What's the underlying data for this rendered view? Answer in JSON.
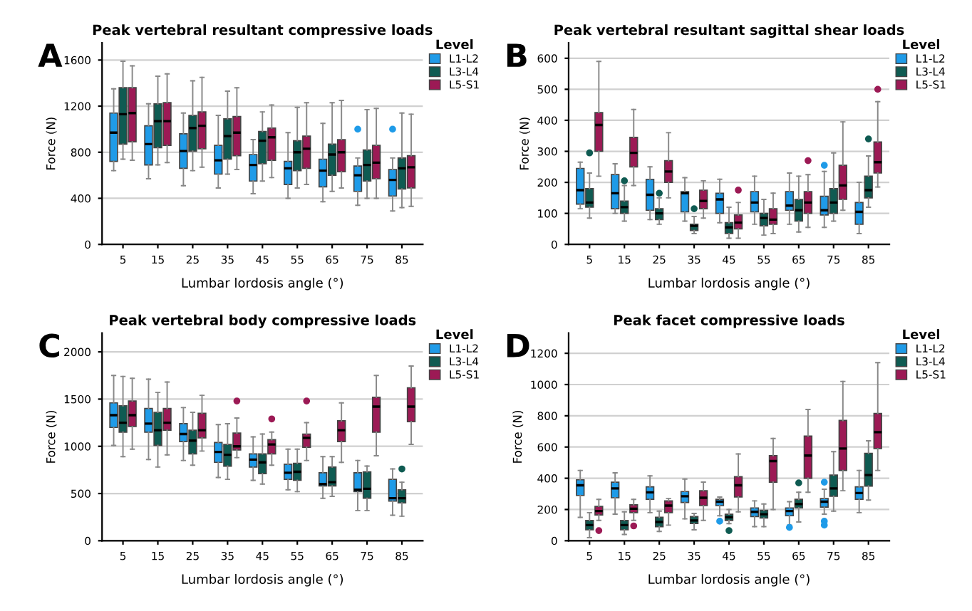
{
  "chart_data": [
    {
      "type": "box",
      "title": "Peak vertebral resultant compressive loads",
      "xlabel": "Lumbar lordosis angle (°)",
      "ylabel": "Force (N)",
      "annotations": [
        "A"
      ],
      "legend_title": "Level",
      "legend": "top right",
      "grid": "y",
      "ylim": [
        0,
        1750
      ],
      "yticks": [
        0,
        400,
        800,
        1200,
        1600
      ],
      "categories": [
        "5",
        "15",
        "25",
        "35",
        "45",
        "55",
        "65",
        "75",
        "85"
      ],
      "series": [
        {
          "name": "L1-L2",
          "color": "#1f9be8",
          "boxes": [
            {
              "low": 640,
              "q1": 720,
              "median": 970,
              "q3": 1140,
              "high": 1350
            },
            {
              "low": 570,
              "q1": 690,
              "median": 870,
              "q3": 1030,
              "high": 1220
            },
            {
              "low": 510,
              "q1": 660,
              "median": 810,
              "q3": 960,
              "high": 1140
            },
            {
              "low": 490,
              "q1": 610,
              "median": 730,
              "q3": 860,
              "high": 1120
            },
            {
              "low": 440,
              "q1": 550,
              "median": 690,
              "q3": 780,
              "high": 910
            },
            {
              "low": 400,
              "q1": 520,
              "median": 660,
              "q3": 720,
              "high": 970
            },
            {
              "low": 370,
              "q1": 500,
              "median": 640,
              "q3": 740,
              "high": 1050
            },
            {
              "low": 340,
              "q1": 460,
              "median": 600,
              "q3": 680,
              "high": 750,
              "outliers": [
                1000
              ]
            },
            {
              "low": 290,
              "q1": 420,
              "median": 560,
              "q3": 650,
              "high": 750,
              "outliers": [
                1000
              ]
            }
          ]
        },
        {
          "name": "L3-L4",
          "color": "#0f5b52",
          "boxes": [
            {
              "low": 740,
              "q1": 870,
              "median": 1130,
              "q3": 1360,
              "high": 1590
            },
            {
              "low": 690,
              "q1": 840,
              "median": 1070,
              "q3": 1220,
              "high": 1460
            },
            {
              "low": 640,
              "q1": 810,
              "median": 1010,
              "q3": 1120,
              "high": 1420
            },
            {
              "low": 610,
              "q1": 740,
              "median": 940,
              "q3": 1090,
              "high": 1330
            },
            {
              "low": 550,
              "q1": 700,
              "median": 900,
              "q3": 980,
              "high": 1150
            },
            {
              "low": 490,
              "q1": 640,
              "median": 800,
              "q3": 900,
              "high": 1190
            },
            {
              "low": 460,
              "q1": 600,
              "median": 780,
              "q3": 870,
              "high": 1230
            },
            {
              "low": 400,
              "q1": 550,
              "median": 690,
              "q3": 820,
              "high": 1170
            },
            {
              "low": 320,
              "q1": 480,
              "median": 660,
              "q3": 750,
              "high": 1140
            }
          ]
        },
        {
          "name": "L5-S1",
          "color": "#9c1a55",
          "boxes": [
            {
              "low": 730,
              "q1": 890,
              "median": 1140,
              "q3": 1360,
              "high": 1550
            },
            {
              "low": 710,
              "q1": 860,
              "median": 1070,
              "q3": 1230,
              "high": 1480
            },
            {
              "low": 670,
              "q1": 830,
              "median": 1030,
              "q3": 1150,
              "high": 1450
            },
            {
              "low": 650,
              "q1": 770,
              "median": 970,
              "q3": 1110,
              "high": 1360
            },
            {
              "low": 580,
              "q1": 730,
              "median": 930,
              "q3": 1010,
              "high": 1210
            },
            {
              "low": 520,
              "q1": 660,
              "median": 830,
              "q3": 940,
              "high": 1230
            },
            {
              "low": 490,
              "q1": 630,
              "median": 800,
              "q3": 910,
              "high": 1250
            },
            {
              "low": 400,
              "q1": 570,
              "median": 710,
              "q3": 860,
              "high": 1180
            },
            {
              "low": 330,
              "q1": 490,
              "median": 670,
              "q3": 770,
              "high": 1130
            }
          ]
        }
      ]
    },
    {
      "type": "box",
      "title": "Peak vertebral resultant sagittal shear loads",
      "xlabel": "Lumbar lordosis angle (°)",
      "ylabel": "Force (N)",
      "annotations": [
        "B"
      ],
      "legend_title": "Level",
      "legend": "top right",
      "grid": "y",
      "ylim": [
        0,
        650
      ],
      "yticks": [
        0,
        100,
        200,
        300,
        400,
        500,
        600
      ],
      "categories": [
        "5",
        "15",
        "25",
        "35",
        "45",
        "55",
        "65",
        "75",
        "85"
      ],
      "series": [
        {
          "name": "L1-L2",
          "color": "#1f9be8",
          "boxes": [
            {
              "low": 115,
              "q1": 130,
              "median": 175,
              "q3": 245,
              "high": 265
            },
            {
              "low": 100,
              "q1": 115,
              "median": 165,
              "q3": 225,
              "high": 260
            },
            {
              "low": 80,
              "q1": 110,
              "median": 160,
              "q3": 210,
              "high": 250
            },
            {
              "low": 75,
              "q1": 105,
              "median": 165,
              "q3": 170,
              "high": 215
            },
            {
              "low": 70,
              "q1": 100,
              "median": 145,
              "q3": 165,
              "high": 210
            },
            {
              "low": 65,
              "q1": 105,
              "median": 135,
              "q3": 170,
              "high": 220
            },
            {
              "low": 65,
              "q1": 110,
              "median": 125,
              "q3": 170,
              "high": 230
            },
            {
              "low": 55,
              "q1": 95,
              "median": 110,
              "q3": 155,
              "high": 235,
              "outliers": [
                255
              ]
            },
            {
              "low": 35,
              "q1": 65,
              "median": 105,
              "q3": 135,
              "high": 200
            }
          ]
        },
        {
          "name": "L3-L4",
          "color": "#0f5b52",
          "boxes": [
            {
              "low": 85,
              "q1": 120,
              "median": 135,
              "q3": 180,
              "high": 230,
              "outliers": [
                295
              ]
            },
            {
              "low": 75,
              "q1": 100,
              "median": 120,
              "q3": 140,
              "high": 190,
              "outliers": [
                205
              ]
            },
            {
              "low": 65,
              "q1": 80,
              "median": 100,
              "q3": 115,
              "high": 150,
              "outliers": [
                165
              ]
            },
            {
              "low": 35,
              "q1": 45,
              "median": 60,
              "q3": 65,
              "high": 90,
              "outliers": [
                115
              ]
            },
            {
              "low": 20,
              "q1": 35,
              "median": 55,
              "q3": 70,
              "high": 120
            },
            {
              "low": 30,
              "q1": 60,
              "median": 85,
              "q3": 100,
              "high": 145
            },
            {
              "low": 40,
              "q1": 75,
              "median": 110,
              "q3": 145,
              "high": 220
            },
            {
              "low": 75,
              "q1": 100,
              "median": 135,
              "q3": 180,
              "high": 295
            },
            {
              "low": 120,
              "q1": 150,
              "median": 175,
              "q3": 220,
              "high": 285,
              "outliers": [
                340
              ]
            }
          ]
        },
        {
          "name": "L5-S1",
          "color": "#9c1a55",
          "boxes": [
            {
              "low": 220,
              "q1": 300,
              "median": 385,
              "q3": 425,
              "high": 590
            },
            {
              "low": 190,
              "q1": 250,
              "median": 295,
              "q3": 345,
              "high": 435
            },
            {
              "low": 150,
              "q1": 200,
              "median": 235,
              "q3": 270,
              "high": 360
            },
            {
              "low": 85,
              "q1": 115,
              "median": 140,
              "q3": 175,
              "high": 205
            },
            {
              "low": 20,
              "q1": 50,
              "median": 70,
              "q3": 95,
              "high": 135,
              "outliers": [
                175
              ]
            },
            {
              "low": 35,
              "q1": 65,
              "median": 80,
              "q3": 115,
              "high": 165
            },
            {
              "low": 55,
              "q1": 100,
              "median": 135,
              "q3": 170,
              "high": 225,
              "outliers": [
                270
              ]
            },
            {
              "low": 110,
              "q1": 145,
              "median": 190,
              "q3": 255,
              "high": 395
            },
            {
              "low": 185,
              "q1": 230,
              "median": 265,
              "q3": 330,
              "high": 460,
              "outliers": [
                500
              ]
            }
          ]
        }
      ]
    },
    {
      "type": "box",
      "title": "Peak vertebral body compressive loads",
      "xlabel": "Lumbar lordosis angle (°)",
      "ylabel": "Force (N)",
      "annotations": [
        "C"
      ],
      "legend_title": "Level",
      "legend": "top right",
      "grid": "y",
      "ylim": [
        0,
        2200
      ],
      "yticks": [
        0,
        500,
        1000,
        1500,
        2000
      ],
      "categories": [
        "5",
        "15",
        "25",
        "35",
        "45",
        "55",
        "65",
        "75",
        "85"
      ],
      "series": [
        {
          "name": "L1-L2",
          "color": "#1f9be8",
          "boxes": [
            {
              "low": 1010,
              "q1": 1200,
              "median": 1330,
              "q3": 1460,
              "high": 1750
            },
            {
              "low": 860,
              "q1": 1150,
              "median": 1240,
              "q3": 1400,
              "high": 1710
            },
            {
              "low": 850,
              "q1": 1050,
              "median": 1130,
              "q3": 1240,
              "high": 1410
            },
            {
              "low": 670,
              "q1": 830,
              "median": 940,
              "q3": 1040,
              "high": 1230
            },
            {
              "low": 640,
              "q1": 780,
              "median": 860,
              "q3": 920,
              "high": 1100
            },
            {
              "low": 540,
              "q1": 650,
              "median": 720,
              "q3": 810,
              "high": 970
            },
            {
              "low": 450,
              "q1": 580,
              "median": 600,
              "q3": 720,
              "high": 890
            },
            {
              "low": 320,
              "q1": 520,
              "median": 540,
              "q3": 720,
              "high": 850
            },
            {
              "low": 270,
              "q1": 420,
              "median": 450,
              "q3": 650,
              "high": 760
            }
          ]
        },
        {
          "name": "L3-L4",
          "color": "#0f5b52",
          "boxes": [
            {
              "low": 890,
              "q1": 1150,
              "median": 1250,
              "q3": 1430,
              "high": 1740
            },
            {
              "low": 780,
              "q1": 1010,
              "median": 1170,
              "q3": 1360,
              "high": 1570
            },
            {
              "low": 800,
              "q1": 920,
              "median": 1060,
              "q3": 1170,
              "high": 1360
            },
            {
              "low": 650,
              "q1": 790,
              "median": 910,
              "q3": 1020,
              "high": 1240
            },
            {
              "low": 600,
              "q1": 710,
              "median": 830,
              "q3": 920,
              "high": 1130
            },
            {
              "low": 520,
              "q1": 640,
              "median": 730,
              "q3": 820,
              "high": 970
            },
            {
              "low": 470,
              "q1": 580,
              "median": 620,
              "q3": 780,
              "high": 890
            },
            {
              "low": 320,
              "q1": 450,
              "median": 550,
              "q3": 730,
              "high": 790
            },
            {
              "low": 260,
              "q1": 400,
              "median": 450,
              "q3": 540,
              "high": 620,
              "outliers": [
                760
              ]
            }
          ]
        },
        {
          "name": "L5-S1",
          "color": "#9c1a55",
          "boxes": [
            {
              "low": 970,
              "q1": 1210,
              "median": 1330,
              "q3": 1480,
              "high": 1720
            },
            {
              "low": 910,
              "q1": 1170,
              "median": 1250,
              "q3": 1400,
              "high": 1680
            },
            {
              "low": 950,
              "q1": 1090,
              "median": 1170,
              "q3": 1350,
              "high": 1540
            },
            {
              "low": 880,
              "q1": 960,
              "median": 1000,
              "q3": 1140,
              "high": 1300,
              "outliers": [
                1480
              ]
            },
            {
              "low": 800,
              "q1": 920,
              "median": 1020,
              "q3": 1070,
              "high": 1150,
              "outliers": [
                1290
              ]
            },
            {
              "low": 850,
              "q1": 990,
              "median": 1090,
              "q3": 1130,
              "high": 1250,
              "outliers": [
                1480
              ]
            },
            {
              "low": 830,
              "q1": 1050,
              "median": 1170,
              "q3": 1270,
              "high": 1460
            },
            {
              "low": 900,
              "q1": 1150,
              "median": 1420,
              "q3": 1520,
              "high": 1750
            },
            {
              "low": 1020,
              "q1": 1260,
              "median": 1420,
              "q3": 1620,
              "high": 1850
            }
          ]
        }
      ]
    },
    {
      "type": "box",
      "title": "Peak facet compressive loads",
      "xlabel": "Lumbar lordosis angle (°)",
      "ylabel": "Force (N)",
      "annotations": [
        "D"
      ],
      "legend_title": "Level",
      "legend": "top right",
      "grid": "y",
      "ylim": [
        0,
        1330
      ],
      "yticks": [
        0,
        200,
        400,
        600,
        800,
        1000,
        1200
      ],
      "categories": [
        "5",
        "15",
        "25",
        "35",
        "45",
        "55",
        "65",
        "75",
        "85"
      ],
      "series": [
        {
          "name": "L1-L2",
          "color": "#1f9be8",
          "boxes": [
            {
              "low": 150,
              "q1": 290,
              "median": 355,
              "q3": 390,
              "high": 450
            },
            {
              "low": 170,
              "q1": 275,
              "median": 335,
              "q3": 375,
              "high": 435
            },
            {
              "low": 180,
              "q1": 265,
              "median": 310,
              "q3": 345,
              "high": 415
            },
            {
              "low": 140,
              "q1": 245,
              "median": 285,
              "q3": 315,
              "high": 395
            },
            {
              "low": 160,
              "q1": 225,
              "median": 250,
              "q3": 265,
              "high": 280,
              "outliers": [
                125
              ]
            },
            {
              "low": 90,
              "q1": 155,
              "median": 185,
              "q3": 210,
              "high": 255
            },
            {
              "low": 100,
              "q1": 160,
              "median": 190,
              "q3": 210,
              "high": 250,
              "outliers": [
                85
              ]
            },
            {
              "low": 170,
              "q1": 215,
              "median": 250,
              "q3": 270,
              "high": 330,
              "outliers": [
                100,
                125,
                375
              ]
            },
            {
              "low": 180,
              "q1": 265,
              "median": 305,
              "q3": 345,
              "high": 450
            }
          ]
        },
        {
          "name": "L3-L4",
          "color": "#0f5b52",
          "boxes": [
            {
              "low": 20,
              "q1": 70,
              "median": 100,
              "q3": 130,
              "high": 180
            },
            {
              "low": 40,
              "q1": 70,
              "median": 100,
              "q3": 130,
              "high": 185
            },
            {
              "low": 60,
              "q1": 90,
              "median": 120,
              "q3": 150,
              "high": 190
            },
            {
              "low": 70,
              "q1": 110,
              "median": 130,
              "q3": 155,
              "high": 175
            },
            {
              "low": 110,
              "q1": 130,
              "median": 150,
              "q3": 170,
              "high": 200,
              "outliers": [
                65
              ]
            },
            {
              "low": 90,
              "q1": 145,
              "median": 170,
              "q3": 195,
              "high": 235
            },
            {
              "low": 120,
              "q1": 210,
              "median": 235,
              "q3": 265,
              "high": 310,
              "outliers": [
                370
              ]
            },
            {
              "low": 190,
              "q1": 285,
              "median": 335,
              "q3": 420,
              "high": 570
            },
            {
              "low": 260,
              "q1": 350,
              "median": 420,
              "q3": 560,
              "high": 640
            }
          ]
        },
        {
          "name": "L5-S1",
          "color": "#9c1a55",
          "boxes": [
            {
              "low": 130,
              "q1": 165,
              "median": 190,
              "q3": 220,
              "high": 265,
              "outliers": [
                65
              ]
            },
            {
              "low": 130,
              "q1": 180,
              "median": 205,
              "q3": 230,
              "high": 265,
              "outliers": [
                95
              ]
            },
            {
              "low": 100,
              "q1": 180,
              "median": 225,
              "q3": 255,
              "high": 270
            },
            {
              "low": 130,
              "q1": 225,
              "median": 275,
              "q3": 320,
              "high": 375
            },
            {
              "low": 185,
              "q1": 280,
              "median": 355,
              "q3": 410,
              "high": 555
            },
            {
              "low": 200,
              "q1": 375,
              "median": 510,
              "q3": 545,
              "high": 655
            },
            {
              "low": 310,
              "q1": 400,
              "median": 545,
              "q3": 670,
              "high": 840
            },
            {
              "low": 320,
              "q1": 450,
              "median": 590,
              "q3": 770,
              "high": 1020
            },
            {
              "low": 450,
              "q1": 590,
              "median": 695,
              "q3": 815,
              "high": 1140
            }
          ]
        }
      ]
    }
  ]
}
